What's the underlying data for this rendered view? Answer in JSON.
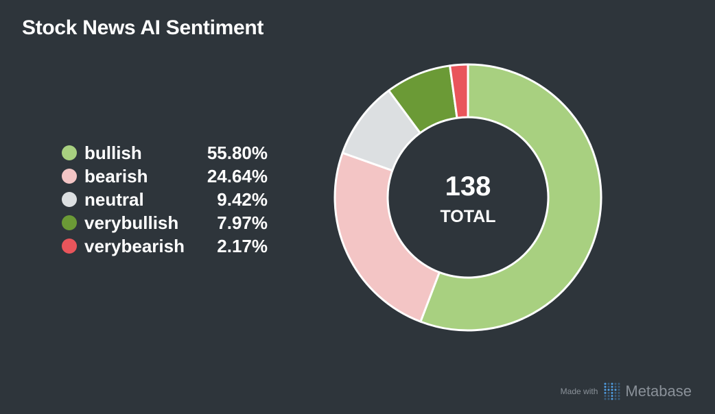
{
  "title": "Stock News AI Sentiment",
  "chart_data": {
    "type": "pie",
    "subtype": "donut",
    "title": "Stock News AI Sentiment",
    "total": 138,
    "total_label": "TOTAL",
    "categories": [
      "bullish",
      "bearish",
      "neutral",
      "verybullish",
      "verybearish"
    ],
    "counts": [
      77,
      34,
      13,
      11,
      3
    ],
    "percentages": [
      "55.80%",
      "24.64%",
      "9.42%",
      "7.97%",
      "2.17%"
    ],
    "colors": [
      "#a8d080",
      "#f3c5c5",
      "#dcdfe1",
      "#6b9a36",
      "#e9555b"
    ],
    "legend_position": "left"
  },
  "legend": [
    {
      "label": "bullish",
      "pct": "55.80%"
    },
    {
      "label": "bearish",
      "pct": "24.64%"
    },
    {
      "label": "neutral",
      "pct": "9.42%"
    },
    {
      "label": "verybullish",
      "pct": "7.97%"
    },
    {
      "label": "verybearish",
      "pct": "2.17%"
    }
  ],
  "center": {
    "value": "138",
    "label": "TOTAL"
  },
  "footer": {
    "made_with": "Made with",
    "brand": "Metabase"
  },
  "colors": {
    "background": "#2e353b",
    "slice_border": "#ffffff",
    "text": "#ffffff",
    "footer_text": "#8a9199",
    "logo_blue": "#509ee3"
  }
}
